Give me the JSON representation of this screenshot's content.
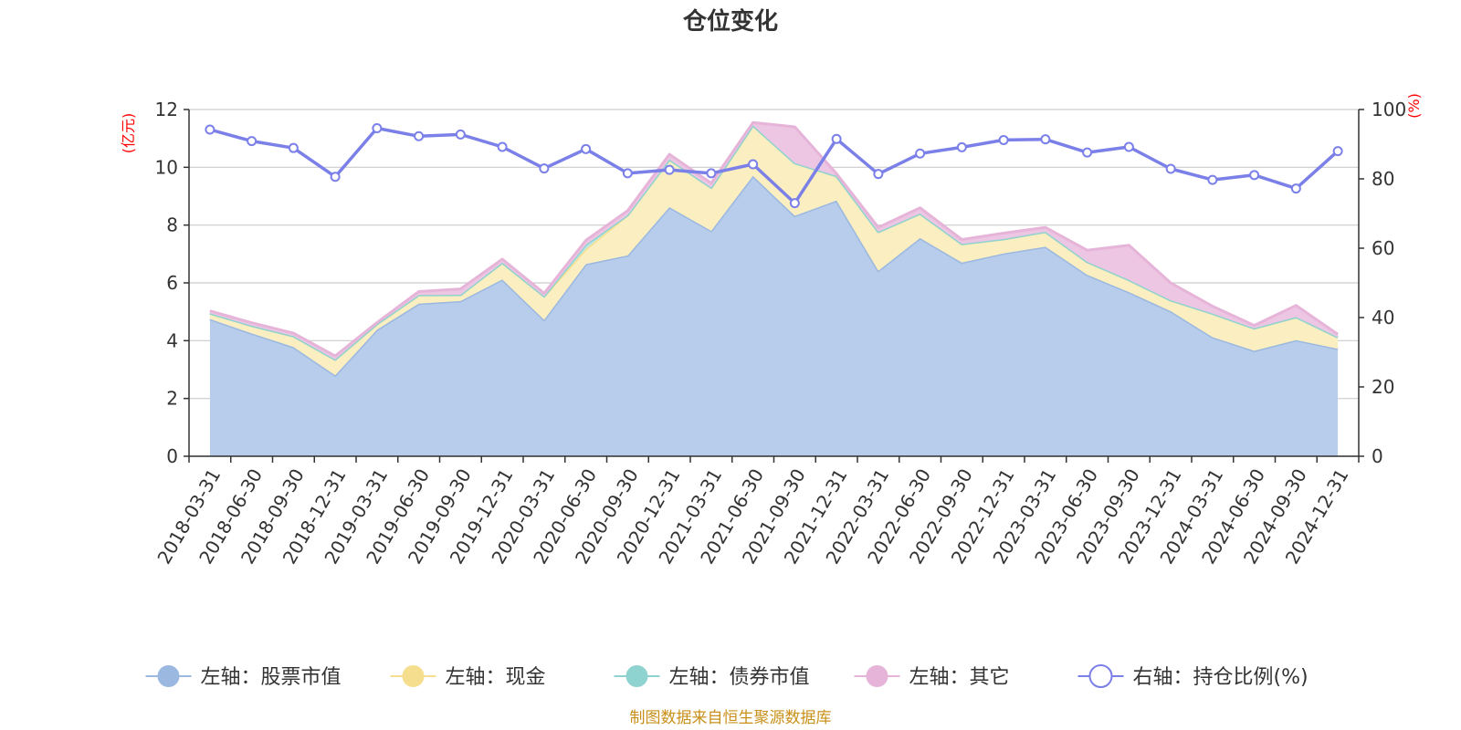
{
  "chart_data": {
    "type": "area",
    "title": "仓位变化",
    "left_axis": {
      "unit": "(亿元)",
      "ylim": [
        0,
        12
      ],
      "ticks": [
        0,
        2,
        4,
        6,
        8,
        10,
        12
      ]
    },
    "right_axis": {
      "unit": "(%)",
      "ylim": [
        0,
        100
      ],
      "ticks": [
        0,
        20,
        40,
        60,
        80,
        100
      ]
    },
    "categories": [
      "2018-03-31",
      "2018-06-30",
      "2018-09-30",
      "2018-12-31",
      "2019-03-31",
      "2019-06-30",
      "2019-09-30",
      "2019-12-31",
      "2020-03-31",
      "2020-06-30",
      "2020-09-30",
      "2020-12-31",
      "2021-03-31",
      "2021-06-30",
      "2021-09-30",
      "2021-12-31",
      "2022-03-31",
      "2022-06-30",
      "2022-09-30",
      "2022-12-31",
      "2023-03-31",
      "2023-06-30",
      "2023-09-30",
      "2023-12-31",
      "2024-03-31",
      "2024-06-30",
      "2024-09-30",
      "2024-12-31"
    ],
    "series": [
      {
        "name": "左轴：股票市值",
        "axis": "left",
        "stacked": true,
        "color": "#9ab8e0",
        "fill": "#b8cceb",
        "values": [
          4.75,
          4.25,
          3.78,
          2.8,
          4.38,
          5.28,
          5.37,
          6.12,
          4.72,
          6.65,
          6.95,
          8.62,
          7.8,
          9.7,
          8.32,
          8.85,
          6.42,
          7.55,
          6.7,
          7.02,
          7.25,
          6.28,
          5.68,
          5.02,
          4.12,
          3.65,
          4.02,
          3.72
        ]
      },
      {
        "name": "左轴：现金",
        "axis": "left",
        "stacked": true,
        "color": "#f5df8f",
        "fill": "#fbeec0",
        "values": [
          0.2,
          0.27,
          0.38,
          0.55,
          0.2,
          0.3,
          0.22,
          0.58,
          0.82,
          0.52,
          1.4,
          1.65,
          1.5,
          1.75,
          1.83,
          0.85,
          1.35,
          0.85,
          0.65,
          0.5,
          0.52,
          0.45,
          0.42,
          0.38,
          0.82,
          0.78,
          0.8,
          0.4
        ]
      },
      {
        "name": "左轴：债券市值",
        "axis": "left",
        "stacked": true,
        "color": "#8fd3d0",
        "fill": "#bce8e5",
        "values": [
          0,
          0,
          0,
          0,
          0,
          0,
          0,
          0,
          0,
          0.15,
          0,
          0,
          0,
          0,
          0,
          0,
          0,
          0,
          0,
          0,
          0,
          0,
          0,
          0,
          0,
          0,
          0,
          0
        ]
      },
      {
        "name": "左轴：其它",
        "axis": "left",
        "stacked": true,
        "color": "#e6b4d8",
        "fill": "#ecc6e2",
        "values": [
          0.08,
          0.1,
          0.1,
          0.12,
          0.05,
          0.12,
          0.2,
          0.12,
          0.1,
          0.15,
          0.15,
          0.18,
          0.15,
          0.1,
          1.25,
          0.08,
          0.15,
          0.2,
          0.15,
          0.2,
          0.15,
          0.4,
          1.2,
          0.6,
          0.25,
          0.1,
          0.4,
          0.1
        ]
      },
      {
        "name": "右轴：持仓比例(%)",
        "axis": "right",
        "type": "line",
        "color": "#7b80e8",
        "values": [
          94.2,
          90.9,
          88.9,
          80.6,
          94.6,
          92.3,
          92.8,
          89.2,
          83,
          88.6,
          81.6,
          82.6,
          81.6,
          84.2,
          73,
          91.5,
          81.4,
          87.3,
          89.1,
          91.2,
          91.4,
          87.6,
          89.2,
          82.9,
          79.7,
          81.1,
          77.2,
          88
        ]
      }
    ],
    "legend_position": "bottom",
    "grid": true
  },
  "footer": {
    "source_text": "制图数据来自恒生聚源数据库"
  }
}
